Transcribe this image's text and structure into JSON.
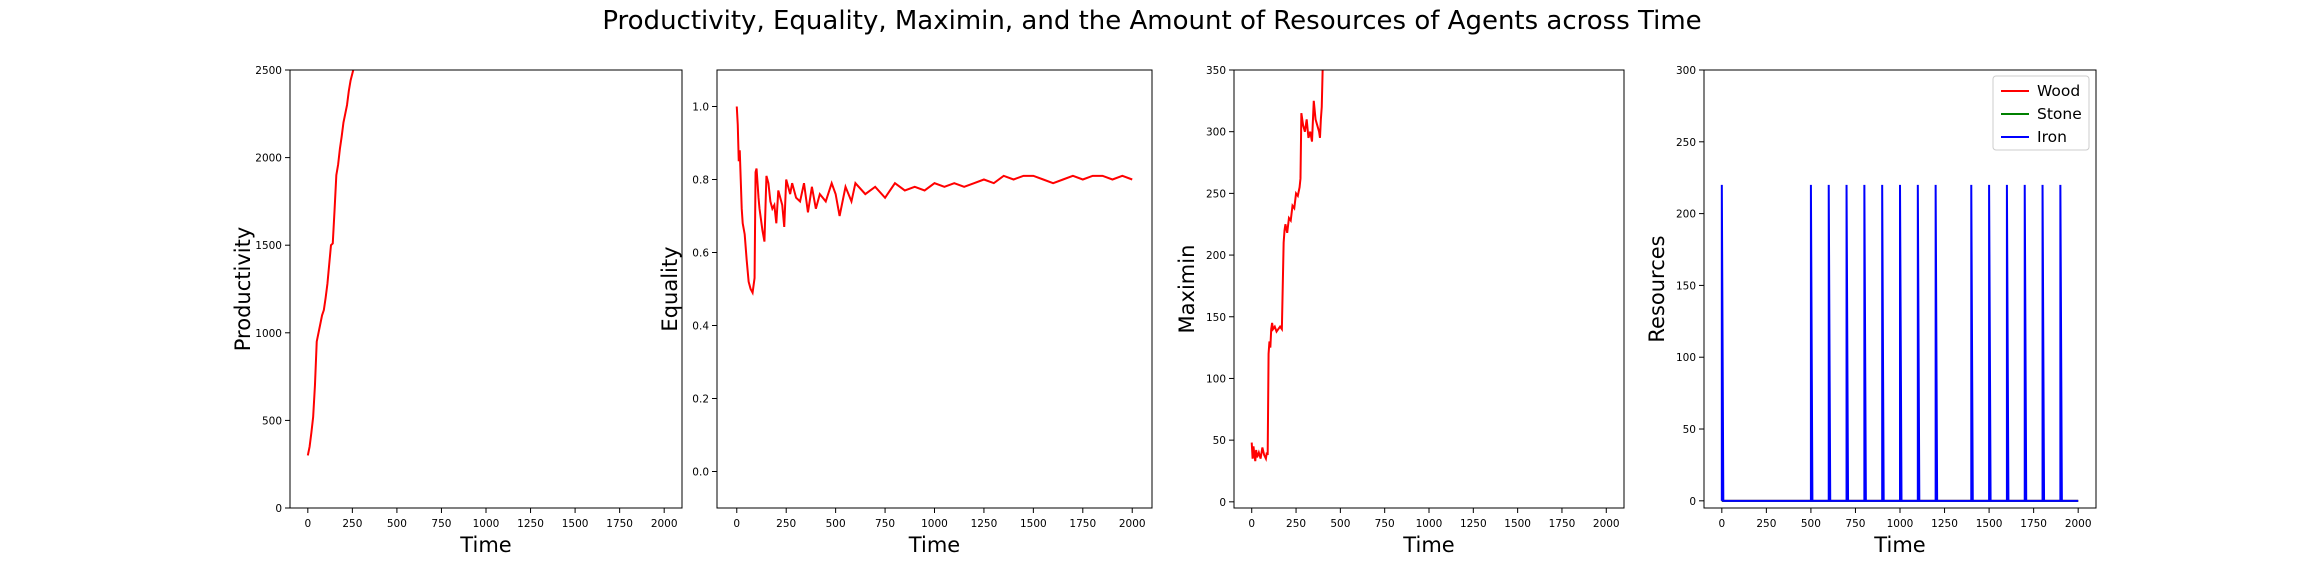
{
  "figure": {
    "title": "Productivity, Equality, Maximin, and the Amount of Resources of Agents across Time"
  },
  "chart_data": [
    {
      "type": "line",
      "xlabel": "Time",
      "ylabel": "Productivity",
      "xlim": [
        -100,
        2100
      ],
      "ylim": [
        0,
        2500
      ],
      "xticks": [
        0,
        250,
        500,
        750,
        1000,
        1250,
        1500,
        1750,
        2000
      ],
      "yticks": [
        0,
        500,
        1000,
        1500,
        2000,
        2500
      ],
      "series": [
        {
          "color": "#ff0000",
          "x": [
            0,
            10,
            20,
            30,
            40,
            50,
            60,
            70,
            80,
            90,
            100,
            110,
            120,
            130,
            140,
            150,
            160,
            170,
            180,
            190,
            200,
            210,
            220,
            230,
            240,
            250,
            255
          ],
          "y": [
            300,
            350,
            430,
            520,
            700,
            950,
            1000,
            1050,
            1100,
            1130,
            1200,
            1280,
            1390,
            1500,
            1510,
            1700,
            1900,
            1960,
            2050,
            2120,
            2200,
            2250,
            2300,
            2380,
            2440,
            2480,
            2500
          ]
        }
      ]
    },
    {
      "type": "line",
      "xlabel": "Time",
      "ylabel": "Equality",
      "xlim": [
        -100,
        2100
      ],
      "ylim": [
        -0.1,
        1.1
      ],
      "xticks": [
        0,
        250,
        500,
        750,
        1000,
        1250,
        1500,
        1750,
        2000
      ],
      "yticks": [
        0.0,
        0.2,
        0.4,
        0.6,
        0.8,
        1.0
      ],
      "series": [
        {
          "color": "#ff0000",
          "x": [
            0,
            5,
            10,
            15,
            20,
            25,
            30,
            40,
            50,
            60,
            70,
            80,
            90,
            95,
            100,
            110,
            115,
            120,
            130,
            140,
            150,
            160,
            170,
            180,
            190,
            200,
            210,
            220,
            230,
            240,
            250,
            260,
            270,
            280,
            300,
            320,
            340,
            360,
            380,
            400,
            420,
            450,
            480,
            500,
            520,
            550,
            580,
            600,
            650,
            700,
            750,
            800,
            850,
            900,
            950,
            1000,
            1050,
            1100,
            1150,
            1200,
            1250,
            1300,
            1350,
            1400,
            1450,
            1500,
            1550,
            1600,
            1650,
            1700,
            1750,
            1800,
            1850,
            1900,
            1950,
            2000
          ],
          "y": [
            1.0,
            0.95,
            0.85,
            0.88,
            0.8,
            0.72,
            0.68,
            0.65,
            0.58,
            0.52,
            0.5,
            0.49,
            0.53,
            0.82,
            0.83,
            0.75,
            0.72,
            0.7,
            0.66,
            0.63,
            0.81,
            0.79,
            0.74,
            0.72,
            0.73,
            0.68,
            0.77,
            0.75,
            0.73,
            0.67,
            0.8,
            0.78,
            0.76,
            0.79,
            0.75,
            0.74,
            0.79,
            0.71,
            0.78,
            0.72,
            0.76,
            0.74,
            0.79,
            0.76,
            0.7,
            0.78,
            0.74,
            0.79,
            0.76,
            0.78,
            0.75,
            0.79,
            0.77,
            0.78,
            0.77,
            0.79,
            0.78,
            0.79,
            0.78,
            0.79,
            0.8,
            0.79,
            0.81,
            0.8,
            0.81,
            0.81,
            0.8,
            0.79,
            0.8,
            0.81,
            0.8,
            0.81,
            0.81,
            0.8,
            0.81,
            0.8
          ]
        }
      ]
    },
    {
      "type": "line",
      "xlabel": "Time",
      "ylabel": "Maximin",
      "xlim": [
        -100,
        2100
      ],
      "ylim": [
        -5,
        350
      ],
      "xticks": [
        0,
        250,
        500,
        750,
        1000,
        1250,
        1500,
        1750,
        2000
      ],
      "yticks": [
        0,
        50,
        100,
        150,
        200,
        250,
        300,
        350
      ],
      "series": [
        {
          "color": "#ff0000",
          "x": [
            0,
            5,
            10,
            15,
            20,
            25,
            30,
            40,
            50,
            60,
            70,
            80,
            85,
            90,
            95,
            100,
            105,
            110,
            115,
            120,
            130,
            140,
            150,
            160,
            170,
            180,
            185,
            190,
            200,
            210,
            220,
            230,
            240,
            250,
            260,
            270,
            275,
            280,
            290,
            300,
            310,
            320,
            330,
            340,
            350,
            360,
            370,
            380,
            385,
            390,
            395,
            400
          ],
          "y": [
            48,
            35,
            45,
            38,
            33,
            42,
            36,
            40,
            35,
            44,
            38,
            35,
            40,
            38,
            120,
            130,
            125,
            140,
            145,
            140,
            142,
            138,
            140,
            142,
            140,
            210,
            220,
            225,
            218,
            230,
            228,
            240,
            238,
            250,
            248,
            255,
            262,
            315,
            305,
            300,
            310,
            295,
            300,
            292,
            325,
            310,
            305,
            300,
            295,
            310,
            320,
            350
          ]
        }
      ]
    },
    {
      "type": "line",
      "xlabel": "Time",
      "ylabel": "Resources",
      "xlim": [
        -100,
        2100
      ],
      "ylim": [
        -5,
        300
      ],
      "xticks": [
        0,
        250,
        500,
        750,
        1000,
        1250,
        1500,
        1750,
        2000
      ],
      "yticks": [
        0,
        50,
        100,
        150,
        200,
        250,
        300
      ],
      "legend": "top-right",
      "series": [
        {
          "name": "Wood",
          "color": "#ff0000",
          "spikes": [],
          "spike_height": 0
        },
        {
          "name": "Stone",
          "color": "#008000",
          "spikes": [],
          "spike_height": 0
        },
        {
          "name": "Iron",
          "color": "#0000ff",
          "spikes": [
            0,
            500,
            600,
            700,
            800,
            900,
            1000,
            1100,
            1200,
            1400,
            1500,
            1600,
            1700,
            1800,
            1900
          ],
          "spike_height": 220
        }
      ]
    }
  ]
}
